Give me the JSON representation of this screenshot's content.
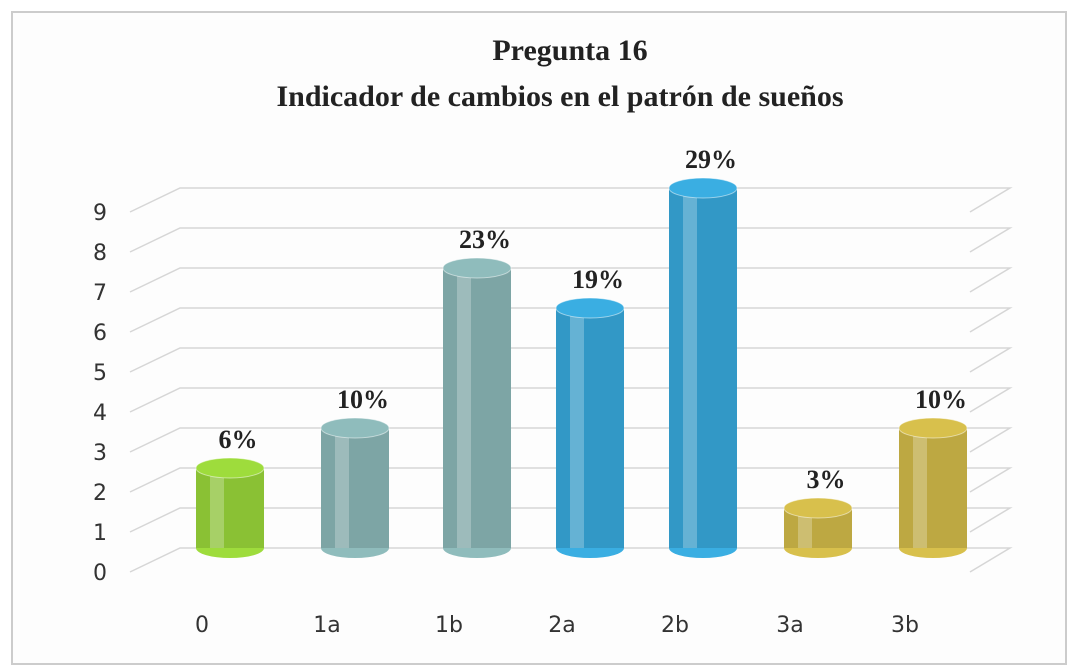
{
  "chart_data": {
    "type": "bar3d",
    "title": "Pregunta 16",
    "subtitle": "Indicador de cambios en el patrón de sueños",
    "categories": [
      "0",
      "1a",
      "1b",
      "2a",
      "2b",
      "3a",
      "3b"
    ],
    "values": [
      2,
      3,
      7,
      6,
      9,
      1,
      3
    ],
    "value_labels": [
      "6%",
      "10%",
      "23%",
      "19%",
      "29%",
      "3%",
      "10%"
    ],
    "colors": [
      "#9edc3c",
      "#8fbcbc",
      "#8fbcbc",
      "#3aaee2",
      "#3aaee2",
      "#d8c04c",
      "#d8c04c"
    ],
    "ylim": [
      0,
      9
    ],
    "yticks": [
      0,
      1,
      2,
      3,
      4,
      5,
      6,
      7,
      8,
      9
    ],
    "grid": true
  }
}
